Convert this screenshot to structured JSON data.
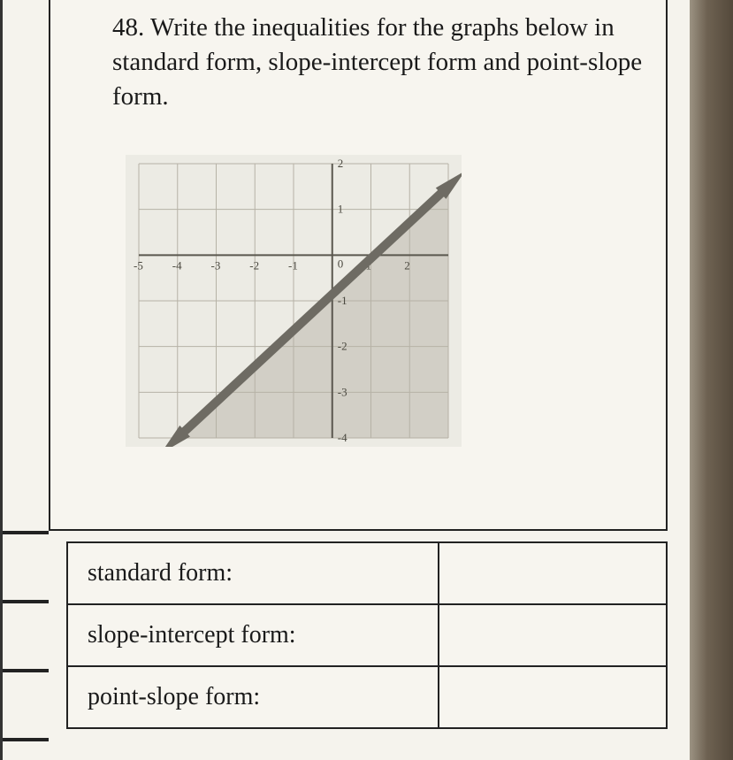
{
  "question": {
    "number": "48.",
    "text": "Write the inequalities for the graphs below in standard form, slope-intercept form and point-slope form."
  },
  "graph": {
    "type": "inequality-line",
    "xlim": [
      -5,
      3
    ],
    "ylim": [
      -4,
      2
    ],
    "xtick_step": 1,
    "ytick_step": 1,
    "x_labels": [
      "-5",
      "-4",
      "-3",
      "-2",
      "-1",
      "0",
      "1",
      "2"
    ],
    "y_labels_pos": [
      "1",
      "2"
    ],
    "y_labels_neg": [
      "-1",
      "-2",
      "-3",
      "-4"
    ],
    "grid_color": "#b6b2a6",
    "axis_color": "#5a574e",
    "line_color": "#6e6b63",
    "arrow_color": "#6e6b63",
    "shade_color": "#c9c6bc",
    "shade_opacity": 0.75,
    "background_color": "#ecebe4",
    "line_points": [
      [
        -4,
        -4
      ],
      [
        3,
        1.5
      ]
    ],
    "shaded_region": "below",
    "line_width": 10,
    "tick_fontsize": 13,
    "font_color": "#4a483f"
  },
  "answers": {
    "rows": [
      {
        "label": "standard form:",
        "value": ""
      },
      {
        "label": "slope-intercept form:",
        "value": ""
      },
      {
        "label": "point-slope form:",
        "value": ""
      }
    ]
  },
  "colors": {
    "page_bg": "#f5f3ed",
    "outer_bg": "#b8b4a8",
    "border": "#222222",
    "text": "#1a1a1a"
  }
}
